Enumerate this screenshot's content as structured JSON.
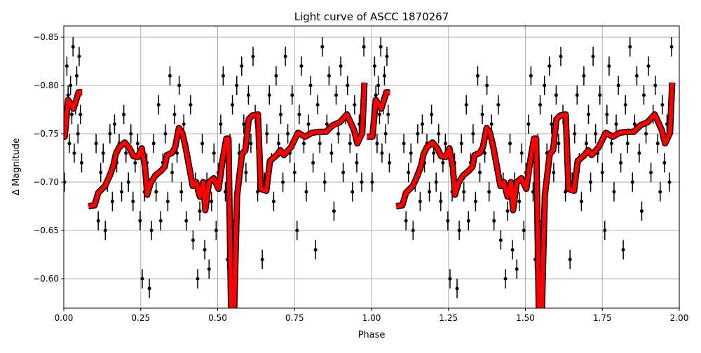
{
  "chart_data": {
    "type": "scatter",
    "title": "Light curve of ASCC 1870267",
    "xlabel": "Phase",
    "ylabel": "Δ Magnitude",
    "xlim": [
      0.0,
      2.0
    ],
    "ylim": [
      -0.5696,
      -0.8616
    ],
    "y_inverted": true,
    "grid": true,
    "xticks": [
      0.0,
      0.25,
      0.5,
      0.75,
      1.0,
      1.25,
      1.5,
      1.75,
      2.0
    ],
    "xtick_labels": [
      "0.00",
      "0.25",
      "0.50",
      "0.75",
      "1.00",
      "1.25",
      "1.50",
      "1.75",
      "2.00"
    ],
    "yticks": [
      -0.85,
      -0.8,
      -0.75,
      -0.7,
      -0.65,
      -0.6
    ],
    "ytick_labels": [
      "−0.85",
      "−0.80",
      "−0.75",
      "−0.70",
      "−0.65",
      "−0.60"
    ],
    "colors": {
      "points": "#000000",
      "binned_curve": "#ff0000",
      "curve_edge": "#000000",
      "grid": "#b0b0b0"
    },
    "phase_repeat": 1.0,
    "points_yerr": 0.01,
    "points": [
      [
        0.002,
        -0.7
      ],
      [
        0.006,
        -0.76
      ],
      [
        0.01,
        -0.82
      ],
      [
        0.014,
        -0.79
      ],
      [
        0.018,
        -0.74
      ],
      [
        0.022,
        -0.8
      ],
      [
        0.026,
        -0.77
      ],
      [
        0.03,
        -0.84
      ],
      [
        0.034,
        -0.73
      ],
      [
        0.038,
        -0.78
      ],
      [
        0.042,
        -0.81
      ],
      [
        0.046,
        -0.75
      ],
      [
        0.05,
        -0.83
      ],
      [
        0.054,
        -0.77
      ],
      [
        0.058,
        -0.72
      ],
      [
        0.105,
        -0.74
      ],
      [
        0.112,
        -0.66
      ],
      [
        0.12,
        -0.71
      ],
      [
        0.128,
        -0.73
      ],
      [
        0.135,
        -0.65
      ],
      [
        0.142,
        -0.7
      ],
      [
        0.15,
        -0.75
      ],
      [
        0.158,
        -0.68
      ],
      [
        0.165,
        -0.76
      ],
      [
        0.172,
        -0.72
      ],
      [
        0.18,
        -0.74
      ],
      [
        0.188,
        -0.69
      ],
      [
        0.195,
        -0.77
      ],
      [
        0.202,
        -0.73
      ],
      [
        0.21,
        -0.7
      ],
      [
        0.218,
        -0.75
      ],
      [
        0.225,
        -0.68
      ],
      [
        0.232,
        -0.72
      ],
      [
        0.24,
        -0.74
      ],
      [
        0.248,
        -0.66
      ],
      [
        0.255,
        -0.6
      ],
      [
        0.262,
        -0.69
      ],
      [
        0.27,
        -0.72
      ],
      [
        0.278,
        -0.59
      ],
      [
        0.285,
        -0.65
      ],
      [
        0.292,
        -0.74
      ],
      [
        0.3,
        -0.69
      ],
      [
        0.308,
        -0.78
      ],
      [
        0.315,
        -0.66
      ],
      [
        0.322,
        -0.72
      ],
      [
        0.33,
        -0.75
      ],
      [
        0.338,
        -0.68
      ],
      [
        0.345,
        -0.81
      ],
      [
        0.352,
        -0.71
      ],
      [
        0.36,
        -0.77
      ],
      [
        0.368,
        -0.73
      ],
      [
        0.375,
        -0.8
      ],
      [
        0.382,
        -0.69
      ],
      [
        0.39,
        -0.76
      ],
      [
        0.398,
        -0.66
      ],
      [
        0.405,
        -0.72
      ],
      [
        0.412,
        -0.78
      ],
      [
        0.42,
        -0.64
      ],
      [
        0.428,
        -0.7
      ],
      [
        0.435,
        -0.6
      ],
      [
        0.442,
        -0.67
      ],
      [
        0.45,
        -0.74
      ],
      [
        0.458,
        -0.63
      ],
      [
        0.465,
        -0.7
      ],
      [
        0.472,
        -0.61
      ],
      [
        0.48,
        -0.68
      ],
      [
        0.488,
        -0.73
      ],
      [
        0.495,
        -0.65
      ],
      [
        0.502,
        -0.71
      ],
      [
        0.51,
        -0.76
      ],
      [
        0.518,
        -0.81
      ],
      [
        0.525,
        -0.69
      ],
      [
        0.532,
        -0.62
      ],
      [
        0.54,
        -0.74
      ],
      [
        0.548,
        -0.78
      ],
      [
        0.555,
        -0.66
      ],
      [
        0.562,
        -0.8
      ],
      [
        0.57,
        -0.73
      ],
      [
        0.578,
        -0.82
      ],
      [
        0.585,
        -0.76
      ],
      [
        0.592,
        -0.71
      ],
      [
        0.6,
        -0.79
      ],
      [
        0.608,
        -0.74
      ],
      [
        0.615,
        -0.83
      ],
      [
        0.622,
        -0.77
      ],
      [
        0.63,
        -0.69
      ],
      [
        0.638,
        -0.72
      ],
      [
        0.645,
        -0.62
      ],
      [
        0.652,
        -0.7
      ],
      [
        0.66,
        -0.75
      ],
      [
        0.668,
        -0.79
      ],
      [
        0.675,
        -0.72
      ],
      [
        0.682,
        -0.68
      ],
      [
        0.69,
        -0.81
      ],
      [
        0.698,
        -0.74
      ],
      [
        0.705,
        -0.77
      ],
      [
        0.712,
        -0.7
      ],
      [
        0.72,
        -0.83
      ],
      [
        0.728,
        -0.75
      ],
      [
        0.735,
        -0.73
      ],
      [
        0.742,
        -0.79
      ],
      [
        0.75,
        -0.71
      ],
      [
        0.758,
        -0.65
      ],
      [
        0.765,
        -0.77
      ],
      [
        0.772,
        -0.82
      ],
      [
        0.78,
        -0.74
      ],
      [
        0.788,
        -0.69
      ],
      [
        0.795,
        -0.76
      ],
      [
        0.802,
        -0.8
      ],
      [
        0.81,
        -0.72
      ],
      [
        0.818,
        -0.63
      ],
      [
        0.825,
        -0.78
      ],
      [
        0.832,
        -0.74
      ],
      [
        0.84,
        -0.84
      ],
      [
        0.848,
        -0.7
      ],
      [
        0.855,
        -0.76
      ],
      [
        0.862,
        -0.81
      ],
      [
        0.87,
        -0.73
      ],
      [
        0.878,
        -0.67
      ],
      [
        0.885,
        -0.79
      ],
      [
        0.892,
        -0.75
      ],
      [
        0.9,
        -0.82
      ],
      [
        0.908,
        -0.71
      ],
      [
        0.915,
        -0.77
      ],
      [
        0.922,
        -0.8
      ],
      [
        0.93,
        -0.74
      ],
      [
        0.938,
        -0.69
      ],
      [
        0.945,
        -0.78
      ],
      [
        0.952,
        -0.72
      ],
      [
        0.96,
        -0.76
      ],
      [
        0.968,
        -0.7
      ],
      [
        0.975,
        -0.84
      ]
    ],
    "binned_curve": [
      [
        -0.015,
        -0.747
      ],
      [
        0.003,
        -0.747
      ],
      [
        0.014,
        -0.785
      ],
      [
        0.032,
        -0.776
      ],
      [
        0.048,
        -0.793
      ],
      [
        0.06,
        -0.793
      ],
      null,
      [
        0.08,
        -0.675
      ],
      [
        0.1,
        -0.676
      ],
      [
        0.112,
        -0.689
      ],
      [
        0.134,
        -0.696
      ],
      [
        0.15,
        -0.707
      ],
      [
        0.162,
        -0.718
      ],
      [
        0.169,
        -0.729
      ],
      [
        0.18,
        -0.736
      ],
      [
        0.198,
        -0.741
      ],
      [
        0.214,
        -0.735
      ],
      [
        0.226,
        -0.727
      ],
      [
        0.241,
        -0.726
      ],
      [
        0.253,
        -0.735
      ],
      [
        0.264,
        -0.716
      ],
      [
        0.271,
        -0.687
      ],
      [
        0.282,
        -0.699
      ],
      [
        0.298,
        -0.707
      ],
      [
        0.317,
        -0.712
      ],
      [
        0.328,
        -0.716
      ],
      [
        0.335,
        -0.728
      ],
      [
        0.351,
        -0.73
      ],
      [
        0.362,
        -0.736
      ],
      [
        0.374,
        -0.756
      ],
      [
        0.385,
        -0.751
      ],
      [
        0.396,
        -0.736
      ],
      [
        0.408,
        -0.715
      ],
      [
        0.419,
        -0.696
      ],
      [
        0.43,
        -0.7
      ],
      [
        0.442,
        -0.685
      ],
      [
        0.453,
        -0.7
      ],
      [
        0.46,
        -0.671
      ],
      [
        0.472,
        -0.7
      ],
      [
        0.487,
        -0.704
      ],
      [
        0.503,
        -0.693
      ],
      [
        0.517,
        -0.725
      ],
      [
        0.528,
        -0.745
      ],
      [
        0.535,
        -0.745
      ],
      [
        0.544,
        -0.56
      ],
      [
        0.553,
        -0.56
      ],
      [
        0.563,
        -0.686
      ],
      [
        0.579,
        -0.729
      ],
      [
        0.59,
        -0.733
      ],
      [
        0.601,
        -0.765
      ],
      [
        0.613,
        -0.769
      ],
      [
        0.631,
        -0.77
      ],
      [
        0.64,
        -0.693
      ],
      [
        0.658,
        -0.691
      ],
      [
        0.67,
        -0.722
      ],
      [
        0.692,
        -0.728
      ],
      [
        0.704,
        -0.733
      ],
      [
        0.715,
        -0.728
      ],
      [
        0.738,
        -0.736
      ],
      [
        0.761,
        -0.751
      ],
      [
        0.784,
        -0.747
      ],
      [
        0.806,
        -0.751
      ],
      [
        0.829,
        -0.752
      ],
      [
        0.852,
        -0.752
      ],
      [
        0.875,
        -0.759
      ],
      [
        0.897,
        -0.762
      ],
      [
        0.92,
        -0.77
      ],
      [
        0.943,
        -0.754
      ],
      [
        0.954,
        -0.74
      ],
      [
        0.97,
        -0.751
      ],
      [
        0.977,
        -0.803
      ]
    ]
  }
}
